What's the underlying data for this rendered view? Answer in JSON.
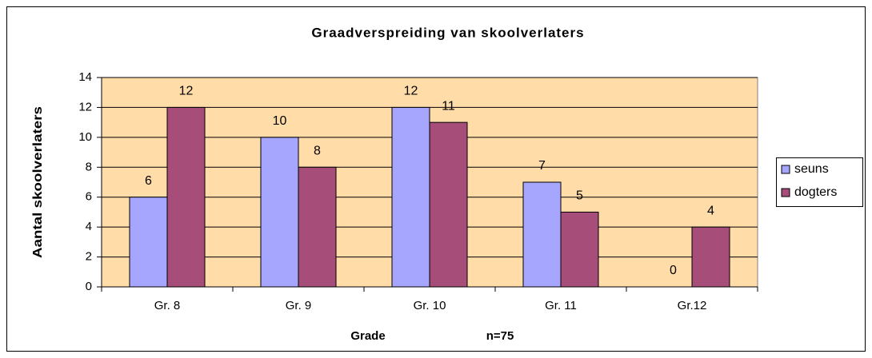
{
  "chart_data": {
    "type": "bar",
    "title": "Graadverspreiding van skoolverlaters",
    "xlabel": "Grade",
    "annotation": "n=75",
    "ylabel": "Aantal skoolverlaters",
    "categories": [
      "Gr. 8",
      "Gr. 9",
      "Gr. 10",
      "Gr. 11",
      "Gr.12"
    ],
    "series": [
      {
        "name": "seuns",
        "color": "#a6a6ff",
        "values": [
          6,
          10,
          12,
          7,
          0
        ]
      },
      {
        "name": "dogters",
        "color": "#a64d79",
        "values": [
          12,
          8,
          11,
          5,
          4
        ]
      }
    ],
    "ylim": [
      0,
      14
    ],
    "yticks": [
      0,
      2,
      4,
      6,
      8,
      10,
      12,
      14
    ],
    "grid": true,
    "legend": "right",
    "plot_background": "#ffdca8"
  }
}
